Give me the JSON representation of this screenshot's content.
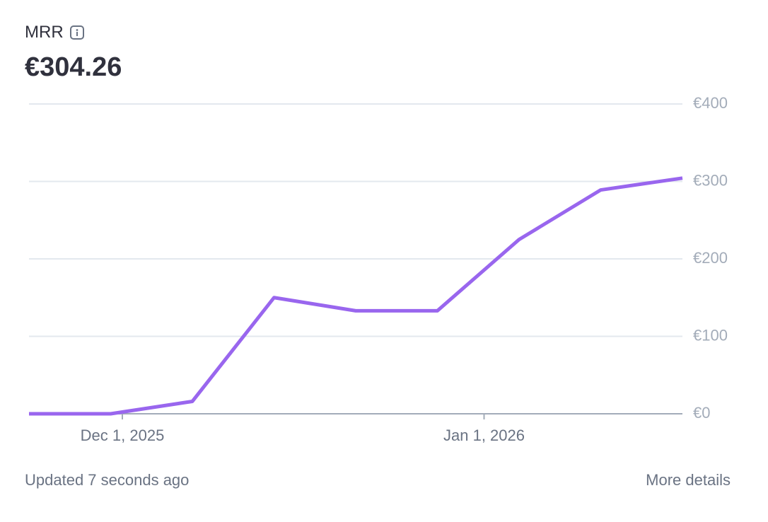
{
  "header": {
    "title": "MRR",
    "amount": "€304.26"
  },
  "chart_data": {
    "type": "line",
    "x": [
      "2025-11-23",
      "2025-11-30",
      "2025-12-07",
      "2025-12-14",
      "2025-12-21",
      "2025-12-28",
      "2026-01-04",
      "2026-01-11",
      "2026-01-18"
    ],
    "values": [
      0,
      0,
      16,
      150,
      133,
      133,
      225,
      289,
      304.26
    ],
    "color": "#9966ee",
    "xlim": [
      "2025-11-23",
      "2026-01-18"
    ],
    "xticks": [
      {
        "value": "2025-12-01",
        "label": "Dec 1, 2025"
      },
      {
        "value": "2026-01-01",
        "label": "Jan 1, 2026"
      }
    ],
    "ylim": [
      0,
      400
    ],
    "yticks": [
      {
        "value": 0,
        "label": "€0"
      },
      {
        "value": 100,
        "label": "€100"
      },
      {
        "value": 200,
        "label": "€200"
      },
      {
        "value": 300,
        "label": "€300"
      },
      {
        "value": 400,
        "label": "€400"
      }
    ],
    "grid": true
  },
  "footer": {
    "updated": "Updated 7 seconds ago",
    "link": "More details"
  }
}
